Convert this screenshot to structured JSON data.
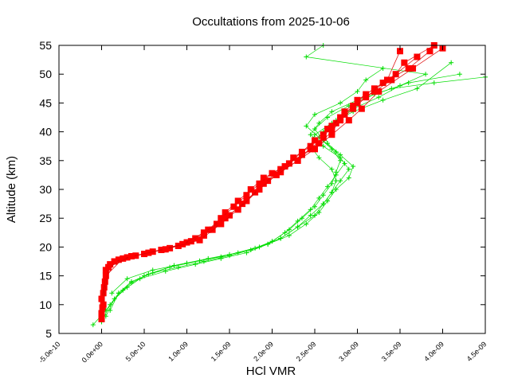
{
  "chart_data": {
    "type": "line",
    "title": "Occultations from 2025-10-06",
    "xlabel": "HCl VMR",
    "ylabel": "Altitude (km)",
    "xlim": [
      -5e-10,
      4.5e-09
    ],
    "ylim": [
      5,
      55
    ],
    "x_ticks": [
      -5e-10,
      0.0,
      5e-10,
      1e-09,
      1.5e-09,
      2e-09,
      2.5e-09,
      3e-09,
      3.5e-09,
      4e-09,
      4.5e-09
    ],
    "x_tick_labels": [
      "-5.0e-10",
      "0.0e+00",
      "5.0e-10",
      "1.0e-09",
      "1.5e-09",
      "2.0e-09",
      "2.5e-09",
      "3.0e-09",
      "3.5e-09",
      "4.0e-09",
      "4.5e-09"
    ],
    "y_ticks": [
      5,
      10,
      15,
      20,
      25,
      30,
      35,
      40,
      45,
      50,
      55
    ],
    "y_tick_labels": [
      "5",
      "10",
      "15",
      "20",
      "25",
      "30",
      "35",
      "40",
      "45",
      "50",
      "55"
    ],
    "grid": false,
    "legend": "none",
    "colors": {
      "green_series": "#00dd00",
      "red_series": "#ff0000",
      "red_line": "#dd0000"
    },
    "series": [
      {
        "marker": "plus",
        "color": "#00dd00",
        "profiles": [
          {
            "x": [
              -1e-10,
              5e-11,
              2e-10,
              3.5e-10,
              6e-10,
              9e-10,
              1.2e-09,
              1.5e-09,
              1.75e-09,
              2e-09,
              2.2e-09,
              2.35e-09,
              2.5e-09,
              2.6e-09,
              2.7e-09,
              2.75e-09,
              2.8e-09,
              2.7e-09,
              2.55e-09,
              2.4e-09,
              2.5e-09,
              2.8e-09,
              3e-09,
              3.1e-09,
              3.3e-09
            ],
            "y": [
              6.5,
              9,
              12,
              14,
              15.5,
              16.5,
              17.5,
              18.5,
              19.5,
              21,
              23,
              25,
              27,
              29,
              31,
              33,
              35,
              37,
              39,
              41,
              43,
              45,
              47,
              49,
              51
            ]
          },
          {
            "x": [
              0.0,
              1e-10,
              2.5e-10,
              4.5e-10,
              7.5e-10,
              1.1e-09,
              1.4e-09,
              1.7e-09,
              1.95e-09,
              2.15e-09,
              2.3e-09,
              2.45e-09,
              2.55e-09,
              2.65e-09,
              2.75e-09,
              2.85e-09,
              2.75e-09,
              2.6e-09,
              2.5e-09,
              2.65e-09,
              2.9e-09,
              3.2e-09,
              3.6e-09,
              4.2e-09
            ],
            "y": [
              7,
              10,
              12.5,
              14.5,
              15.8,
              17,
              18,
              19,
              20.5,
              22.5,
              24.5,
              26.5,
              28.5,
              30.5,
              32.5,
              34.5,
              36.5,
              38.5,
              40.5,
              42.5,
              44.5,
              46.5,
              48.5,
              50
            ]
          },
          {
            "x": [
              5e-11,
              1.5e-10,
              3e-10,
              5e-10,
              8e-10,
              1.15e-09,
              1.5e-09,
              1.85e-09,
              2.1e-09,
              2.3e-09,
              2.5e-09,
              2.6e-09,
              2.7e-09,
              2.8e-09,
              2.9e-09,
              2.8e-09,
              2.6e-09,
              2.45e-09,
              2.55e-09,
              2.7e-09,
              3e-09,
              3.4e-09,
              3.9e-09,
              4.5e-09
            ],
            "y": [
              8,
              11,
              13,
              15,
              16.5,
              17.6,
              18.7,
              20,
              21.5,
              23.5,
              25.5,
              27.5,
              29.5,
              31.5,
              33.5,
              35.5,
              37.5,
              39.5,
              41.5,
              43.5,
              45.5,
              47.5,
              48.5,
              49.5
            ]
          },
          {
            "x": [
              1e-10,
              2e-10,
              3.5e-10,
              5.5e-10,
              8.5e-10,
              1.25e-09,
              1.6e-09,
              1.95e-09,
              2.2e-09,
              2.4e-09,
              2.55e-09,
              2.65e-09,
              2.75e-09,
              2.9e-09,
              2.95e-09,
              2.8e-09,
              2.65e-09,
              2.6e-09,
              2.75e-09,
              2.95e-09,
              3.25e-09,
              3.5e-09,
              3.8e-09,
              2.4e-09,
              2.6e-09
            ],
            "y": [
              9,
              12,
              13.8,
              15.3,
              16.8,
              18,
              19,
              20.5,
              22,
              24,
              26,
              28,
              30,
              32,
              34,
              36,
              38,
              40,
              42,
              44,
              46,
              48,
              50,
              53,
              55
            ]
          },
          {
            "x": [
              1.2e-10,
              3e-10,
              6e-10,
              1e-09,
              1.4e-09,
              1.8e-09,
              2.1e-09,
              2.3e-09,
              2.45e-09,
              2.6e-09,
              2.7e-09,
              2.75e-09,
              2.7e-09,
              2.55e-09,
              2.45e-09,
              2.5e-09,
              2.7e-09,
              2.95e-09,
              3.3e-09,
              3.7e-09,
              4.1e-09
            ],
            "y": [
              12,
              14.5,
              16,
              17.2,
              18.3,
              19.8,
              21.5,
              23.5,
              25.5,
              27.5,
              29.5,
              31.5,
              33.5,
              35.5,
              37.5,
              39.5,
              41.5,
              43.5,
              45.5,
              47.5,
              52
            ]
          }
        ]
      },
      {
        "marker": "filled-square",
        "color": "#ff0000",
        "profiles": [
          {
            "x": [
              0.0,
              2e-11,
              5e-11,
              2e-10,
              5e-10,
              8e-10,
              1e-09,
              1.2e-09,
              1.35e-09,
              1.45e-09,
              1.6e-09,
              1.75e-09,
              1.9e-09,
              2.1e-09,
              2.25e-09,
              2.45e-09,
              2.6e-09,
              2.75e-09,
              2.85e-09,
              3e-09,
              3.2e-09,
              3.45e-09,
              3.7e-09
            ],
            "y": [
              7.5,
              12,
              16,
              17.8,
              18.8,
              19.8,
              20.8,
              22,
              24,
              26,
              28,
              30,
              32,
              33.5,
              35.5,
              37.5,
              39.5,
              41.5,
              43.5,
              45.5,
              47.5,
              50,
              53
            ]
          },
          {
            "x": [
              0.0,
              3e-11,
              1e-10,
              3e-10,
              6e-10,
              9e-10,
              1.1e-09,
              1.25e-09,
              1.4e-09,
              1.55e-09,
              1.7e-09,
              1.85e-09,
              2e-09,
              2.2e-09,
              2.35e-09,
              2.5e-09,
              2.65e-09,
              2.8e-09,
              2.95e-09,
              3.1e-09,
              3.3e-09,
              3.6e-09,
              3.85e-09
            ],
            "y": [
              8.5,
              13,
              17,
              18.2,
              19.2,
              20.2,
              21.5,
              23,
              25,
              27,
              29,
              31,
              32.8,
              34.5,
              36.5,
              38.5,
              40.5,
              42.5,
              44.5,
              46.5,
              48.5,
              51,
              54
            ]
          },
          {
            "x": [
              1e-11,
              4e-11,
              1.5e-10,
              4e-10,
              7e-10,
              1.05e-09,
              1.3e-09,
              1.5e-09,
              1.65e-09,
              1.8e-09,
              1.95e-09,
              2.1e-09,
              2.3e-09,
              2.45e-09,
              2.6e-09,
              2.7e-09,
              2.85e-09,
              3e-09,
              3.2e-09,
              3.4e-09,
              3.55e-09,
              3.9e-09
            ],
            "y": [
              9.5,
              14,
              17.5,
              18.5,
              19.5,
              21,
              23,
              25.5,
              27.5,
              29.5,
              31.5,
              33,
              35,
              37,
              39,
              41,
              43,
              45,
              47,
              49,
              52,
              55
            ]
          },
          {
            "x": [
              0.0,
              5e-11,
              2.5e-10,
              5.5e-10,
              9.5e-10,
              1.2e-09,
              1.45e-09,
              1.7e-09,
              1.9e-09,
              2.15e-09,
              2.35e-09,
              2.55e-09,
              2.7e-09,
              2.8e-09,
              2.95e-09,
              3.1e-09,
              3.35e-09,
              3.5e-09
            ],
            "y": [
              11,
              15,
              18,
              19,
              20.5,
              22.5,
              25,
              28,
              31,
              34,
              36,
              38,
              40,
              42,
              44,
              46,
              49,
              54
            ]
          },
          {
            "x": [
              2e-11,
              8e-11,
              3.5e-10,
              7.5e-10,
              1.15e-09,
              1.4e-09,
              1.6e-09,
              1.85e-09,
              2.05e-09,
              2.3e-09,
              2.5e-09,
              2.7e-09,
              2.9e-09,
              3.05e-09,
              3.25e-09,
              3.65e-09,
              4e-09
            ],
            "y": [
              10,
              16.5,
              18.4,
              19.6,
              21.2,
              24,
              26.5,
              30,
              32.5,
              35,
              37,
              39.5,
              42,
              44,
              47,
              51,
              54.5
            ]
          }
        ]
      }
    ]
  }
}
